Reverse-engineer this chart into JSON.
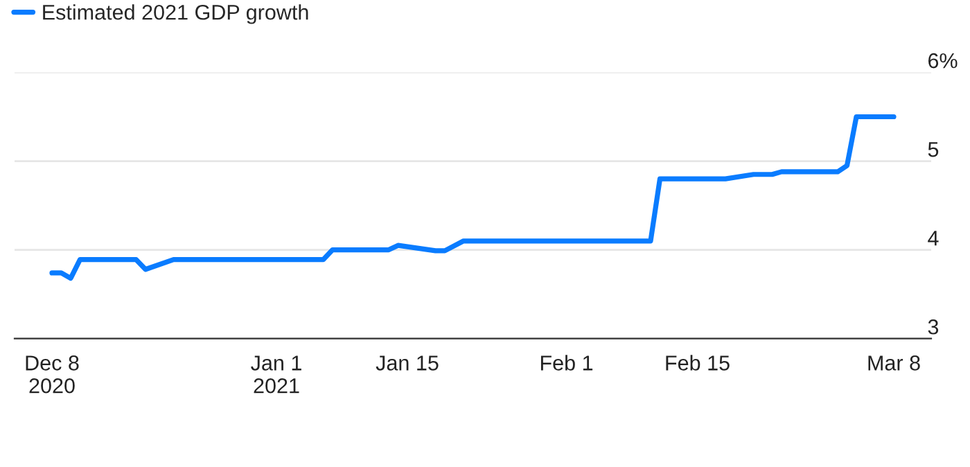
{
  "chart_data": {
    "type": "line",
    "x": [
      "2020-12-08",
      "2020-12-09",
      "2020-12-10",
      "2020-12-11",
      "2020-12-17",
      "2020-12-18",
      "2020-12-21",
      "2021-01-06",
      "2021-01-07",
      "2021-01-13",
      "2021-01-14",
      "2021-01-18",
      "2021-01-19",
      "2021-01-21",
      "2021-02-10",
      "2021-02-11",
      "2021-02-18",
      "2021-02-21",
      "2021-02-23",
      "2021-02-24",
      "2021-03-02",
      "2021-03-03",
      "2021-03-04",
      "2021-03-08"
    ],
    "series": [
      {
        "name": "Estimated 2021 GDP growth",
        "color": "#0a7cff",
        "values": [
          3.74,
          3.74,
          3.68,
          3.89,
          3.89,
          3.78,
          3.89,
          3.89,
          4.0,
          4.0,
          4.05,
          3.99,
          3.99,
          4.1,
          4.1,
          4.8,
          4.8,
          4.85,
          4.85,
          4.88,
          4.88,
          4.95,
          5.5,
          5.5
        ]
      }
    ],
    "xlim": [
      "2020-12-04",
      "2021-03-12"
    ],
    "xticks": [
      {
        "value": "2020-12-08",
        "label": "Dec 8\n2020"
      },
      {
        "value": "2021-01-01",
        "label": "Jan 1\n2021"
      },
      {
        "value": "2021-01-15",
        "label": "Jan 15"
      },
      {
        "value": "2021-02-01",
        "label": "Feb 1"
      },
      {
        "value": "2021-02-15",
        "label": "Feb 15"
      },
      {
        "value": "2021-03-08",
        "label": "Mar 8"
      }
    ],
    "ylim": [
      3,
      6
    ],
    "yticks": [
      3,
      4,
      5,
      {
        "value": 6,
        "label": "6%"
      }
    ],
    "grid": "y",
    "legend": "top left",
    "line_style": "solid",
    "marker": "none"
  }
}
